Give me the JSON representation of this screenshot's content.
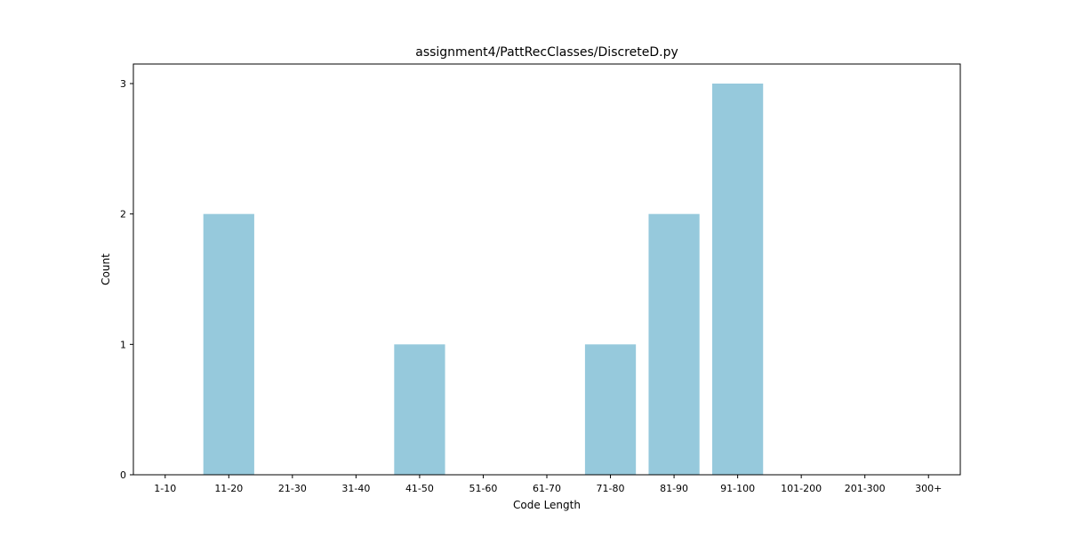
{
  "chart_data": {
    "type": "bar",
    "title": "assignment4/PattRecClasses/DiscreteD.py",
    "xlabel": "Code Length",
    "ylabel": "Count",
    "categories": [
      "1-10",
      "11-20",
      "21-30",
      "31-40",
      "41-50",
      "51-60",
      "61-70",
      "71-80",
      "81-90",
      "91-100",
      "101-200",
      "201-300",
      "300+"
    ],
    "values": [
      0,
      2,
      0,
      0,
      1,
      0,
      0,
      1,
      2,
      3,
      0,
      0,
      0
    ],
    "ylim": [
      0,
      3.15
    ],
    "yticks": [
      0,
      1,
      2,
      3
    ],
    "grid": false,
    "bar_color": "#96c9dc"
  }
}
